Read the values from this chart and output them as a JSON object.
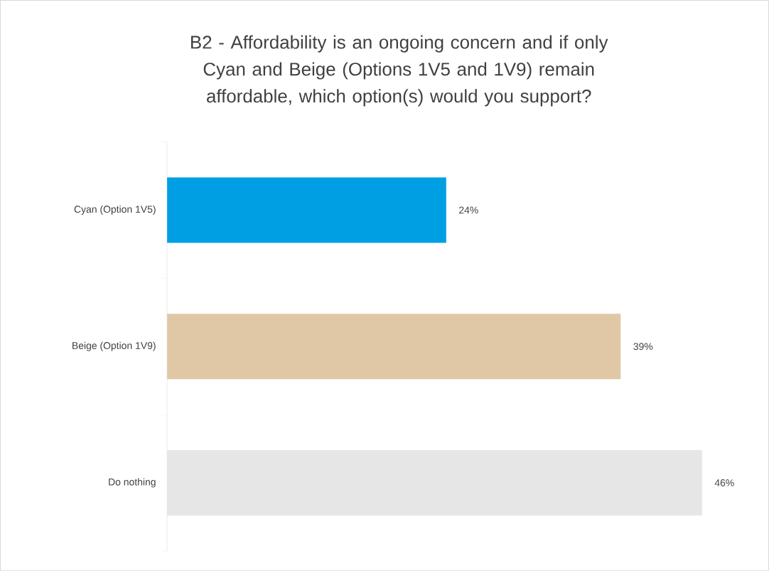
{
  "chart_data": {
    "type": "bar",
    "orientation": "horizontal",
    "title": "B2 - Affordability is an ongoing concern and if only Cyan and Beige (Options 1V5 and 1V9) remain affordable, which option(s) would you support?",
    "categories": [
      "Cyan (Option 1V5)",
      "Beige (Option 1V9)",
      "Do nothing"
    ],
    "values": [
      24,
      39,
      46
    ],
    "colors": [
      "#009fe3",
      "#e0c8a6",
      "#e6e6e6"
    ],
    "value_labels": [
      "24%",
      "39%",
      "46%"
    ],
    "tick_labels": "y"
  }
}
